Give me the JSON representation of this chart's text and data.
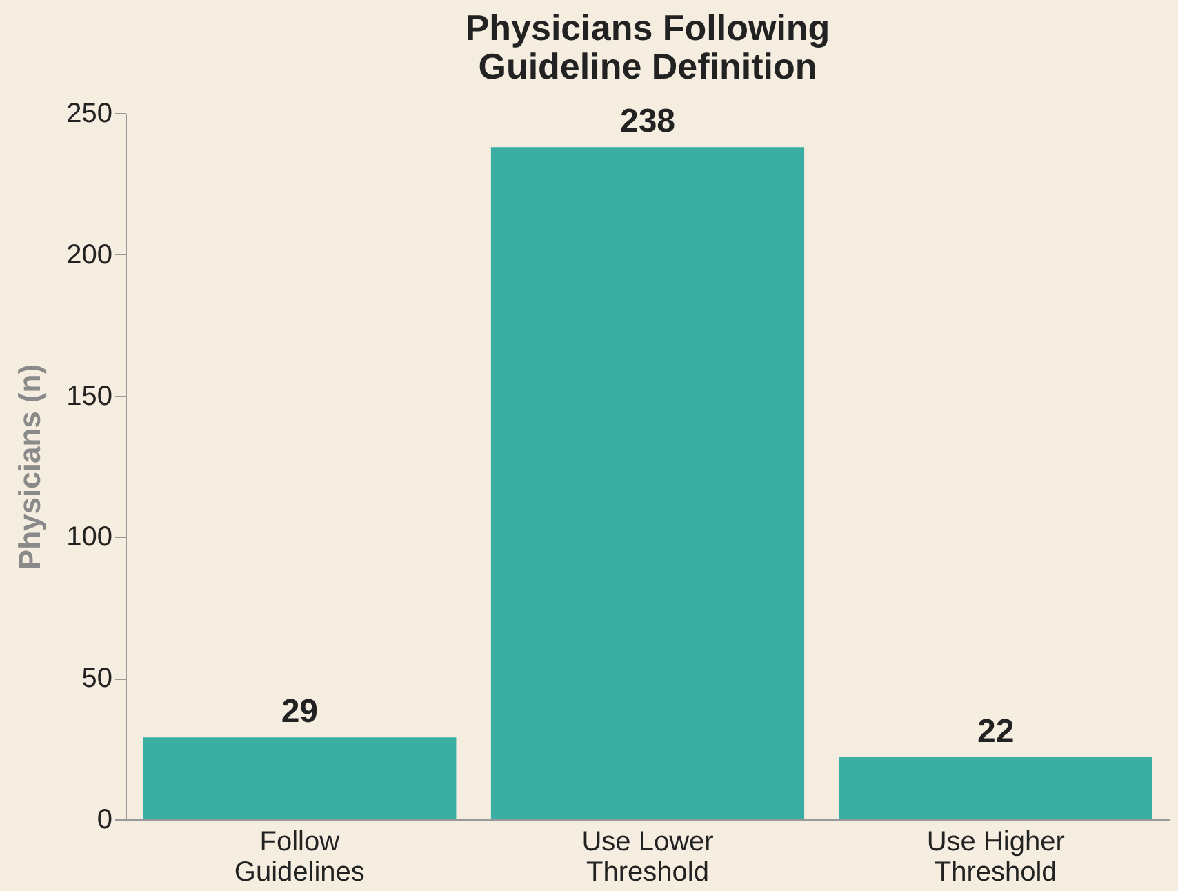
{
  "chart_data": {
    "type": "bar",
    "title": [
      "Physicians Following",
      "Guideline Definition"
    ],
    "ylabel": "Physicians (n)",
    "categories": [
      "Follow Guidelines",
      "Use Lower Threshold",
      "Use Higher Threshold"
    ],
    "values": [
      29,
      238,
      22
    ],
    "color": "#3aaea3",
    "ylim": [
      0,
      250
    ],
    "yticks": [
      0,
      50,
      100,
      150,
      200,
      250
    ],
    "grid": false,
    "data_labels": true
  }
}
